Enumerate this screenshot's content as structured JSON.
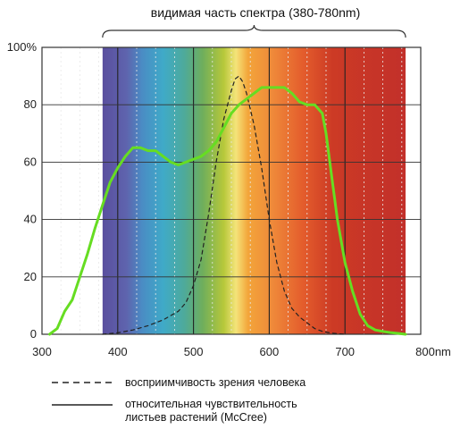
{
  "chart_data": {
    "type": "line",
    "title": "видимая часть спектра (380-780nm)",
    "xlabel": "",
    "ylabel": "",
    "xlim": [
      300,
      800
    ],
    "ylim": [
      0,
      100
    ],
    "x_ticks": [
      "300",
      "400",
      "500",
      "600",
      "700",
      "800nm"
    ],
    "y_ticks": [
      "0",
      "20",
      "40",
      "60",
      "80",
      "100%"
    ],
    "visible_band": [
      380,
      780
    ],
    "series": [
      {
        "name": "восприимчивость зрения человека",
        "style": "dashed",
        "color": "#222222",
        "x": [
          380,
          400,
          420,
          440,
          460,
          480,
          490,
          500,
          510,
          520,
          530,
          540,
          550,
          555,
          560,
          565,
          570,
          580,
          590,
          600,
          610,
          620,
          630,
          640,
          650,
          660,
          670,
          680,
          690,
          700
        ],
        "y": [
          0,
          0.5,
          1.5,
          3,
          5,
          8,
          11,
          17,
          26,
          42,
          60,
          75,
          85,
          89,
          90,
          88,
          84,
          73,
          58,
          40,
          25,
          15,
          9,
          6,
          4,
          2,
          1,
          0.5,
          0.2,
          0
        ]
      },
      {
        "name": "относительная чувствительность листьев растений (McCree)",
        "style": "solid",
        "color": "#66dd22",
        "x": [
          310,
          320,
          330,
          340,
          350,
          360,
          370,
          380,
          390,
          400,
          410,
          420,
          430,
          440,
          450,
          460,
          470,
          480,
          490,
          500,
          510,
          520,
          530,
          540,
          550,
          560,
          570,
          580,
          590,
          600,
          610,
          620,
          630,
          640,
          650,
          660,
          670,
          675,
          680,
          690,
          700,
          710,
          720,
          730,
          740,
          750,
          760,
          770,
          780
        ],
        "y": [
          0,
          2,
          8,
          12,
          20,
          28,
          37,
          45,
          53,
          58,
          62,
          65,
          65,
          64,
          64,
          62,
          60,
          59,
          60,
          61,
          62,
          64,
          67,
          72,
          77,
          80,
          82,
          84,
          86,
          86,
          86,
          86,
          84,
          81,
          80,
          80,
          77,
          70,
          60,
          40,
          25,
          15,
          7,
          3,
          1.5,
          1,
          0.6,
          0.3,
          0
        ]
      }
    ],
    "grid": true,
    "legend_position": "bottom"
  },
  "colors": {
    "plant_curve": "#66dd22",
    "eye_curve": "#222222",
    "background": "#ffffff"
  }
}
